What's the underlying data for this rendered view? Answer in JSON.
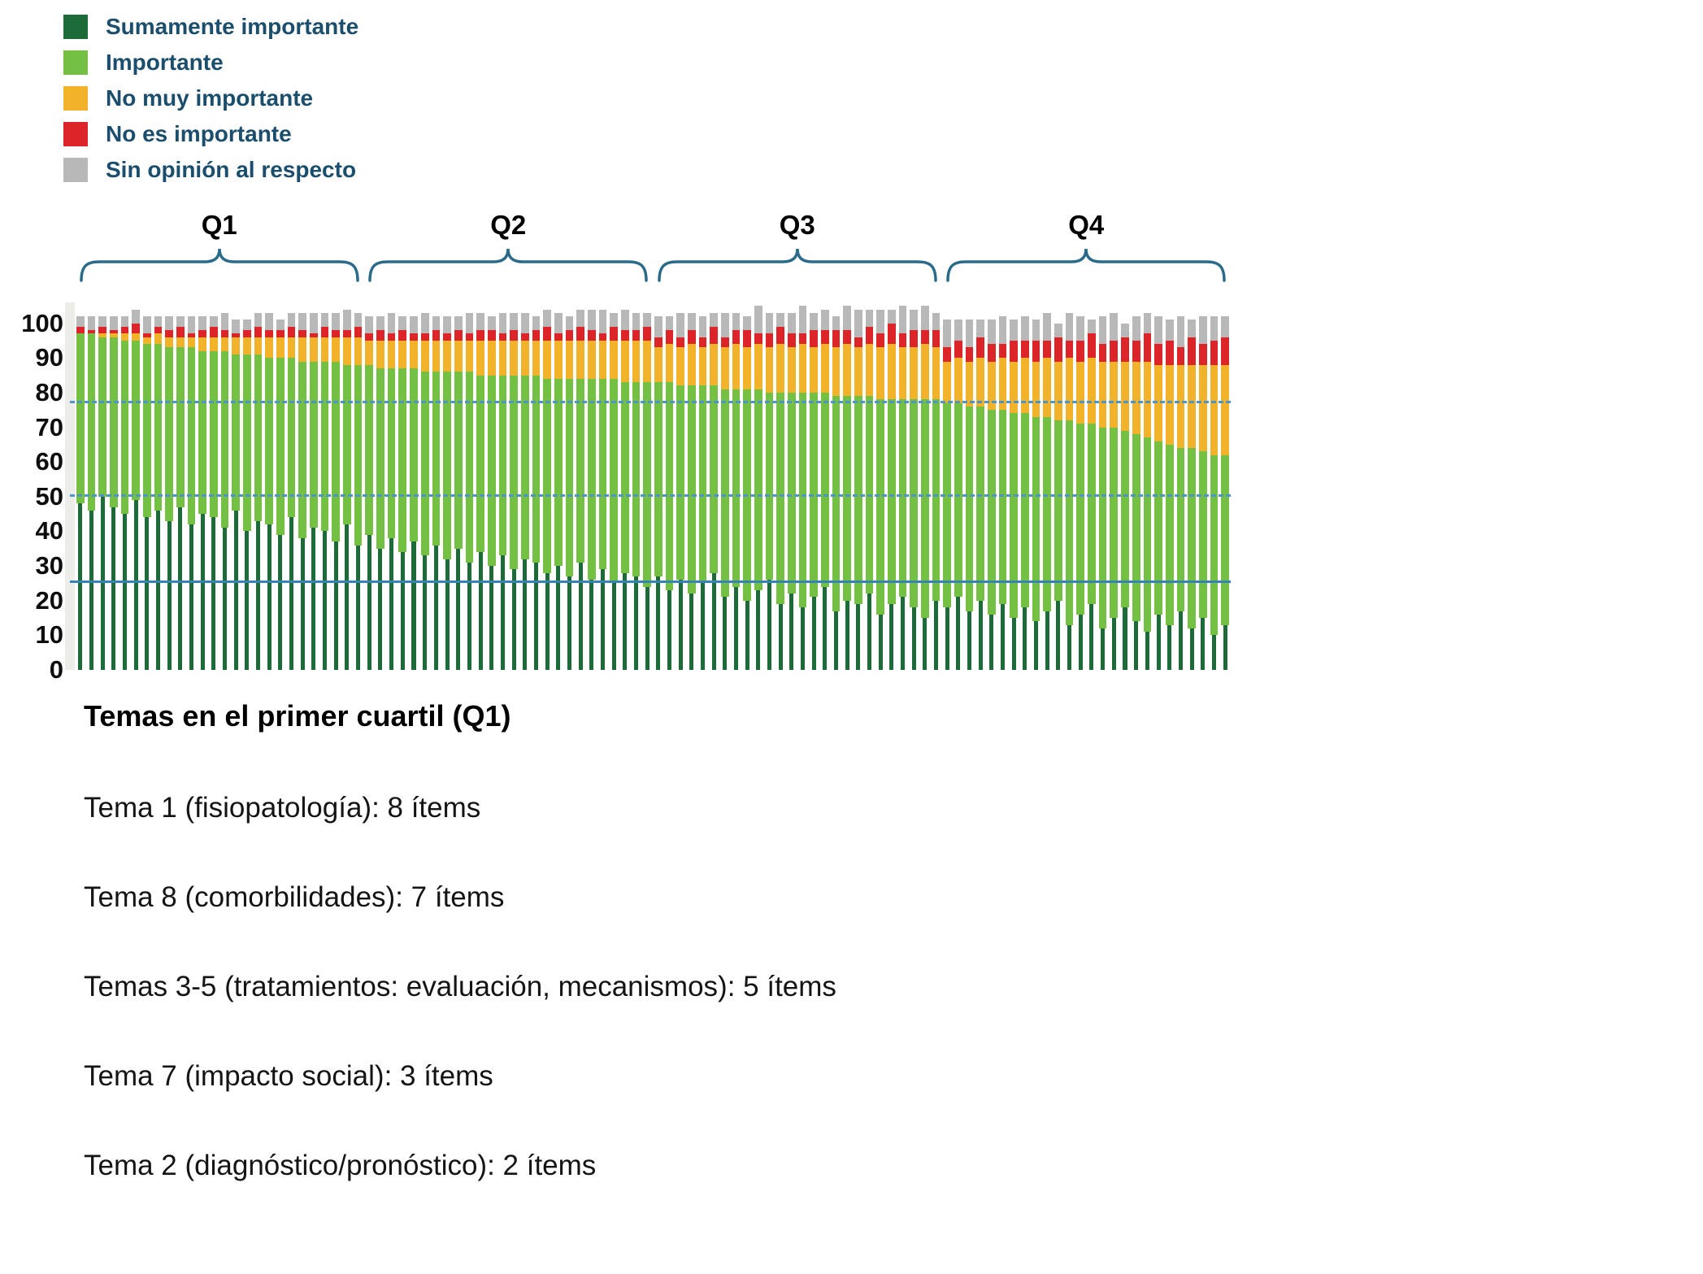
{
  "legend": {
    "items": [
      {
        "label": "Sumamente importante",
        "color": "#1d6b39"
      },
      {
        "label": "Importante",
        "color": "#74c043"
      },
      {
        "label": "No muy importante",
        "color": "#f2b32a"
      },
      {
        "label": "No es importante",
        "color": "#dd2428"
      },
      {
        "label": "Sin opinión al respecto",
        "color": "#b8b8b8"
      }
    ]
  },
  "colors": {
    "bracket": "#2a6b8a",
    "dashed_line": "#4f94c9",
    "solid_line": "#3584b5"
  },
  "y_axis": {
    "ticks": [
      100,
      90,
      80,
      70,
      60,
      50,
      40,
      30,
      20,
      10,
      0
    ]
  },
  "reference_lines": [
    {
      "value": 77,
      "style": "dashed",
      "color": "#4f94c9"
    },
    {
      "value": 50,
      "style": "dashed",
      "color": "#4f94c9"
    },
    {
      "value": 25,
      "style": "solid",
      "color": "#3584b5"
    }
  ],
  "footer": {
    "title": "Temas en el primer cuartil (Q1)",
    "lines": [
      "Tema 1 (fisiopatología): 8 ítems",
      "Tema 8 (comorbilidades): 7 ítems",
      "Temas 3-5 (tratamientos: evaluación, mecanismos): 5 ítems",
      "Tema 7 (impacto social): 3 ítems",
      "Tema 2 (diagnóstico/pronóstico): 2 ítems"
    ]
  },
  "chart_data": {
    "type": "bar",
    "stacked": true,
    "unit": "% of responses per item",
    "n_items": 104,
    "ylim": [
      0,
      100
    ],
    "grid": false,
    "legend_position": "top-left",
    "quartile_brackets": [
      {
        "label": "Q1",
        "from": 0,
        "to": 25
      },
      {
        "label": "Q2",
        "from": 26,
        "to": 51
      },
      {
        "label": "Q3",
        "from": 52,
        "to": 77
      },
      {
        "label": "Q4",
        "from": 78,
        "to": 103
      }
    ],
    "series": [
      {
        "name": "Sumamente importante",
        "color": "#1d6b39",
        "values": [
          48,
          46,
          50,
          47,
          45,
          49,
          44,
          46,
          43,
          47,
          42,
          45,
          44,
          41,
          46,
          40,
          43,
          42,
          39,
          44,
          38,
          41,
          40,
          37,
          42,
          36,
          39,
          35,
          38,
          34,
          37,
          33,
          36,
          32,
          35,
          31,
          34,
          30,
          33,
          29,
          32,
          31,
          28,
          30,
          27,
          31,
          26,
          29,
          25,
          28,
          27,
          24,
          27,
          23,
          26,
          22,
          25,
          28,
          21,
          24,
          20,
          23,
          26,
          19,
          22,
          18,
          21,
          24,
          17,
          20,
          19,
          22,
          16,
          19,
          21,
          18,
          15,
          20,
          18,
          21,
          17,
          20,
          16,
          19,
          15,
          18,
          14,
          17,
          20,
          13,
          16,
          19,
          12,
          15,
          18,
          14,
          11,
          16,
          13,
          17,
          12,
          15,
          10,
          13
        ]
      },
      {
        "name": "Importante",
        "color": "#74c043",
        "values": [
          49,
          51,
          46,
          49,
          50,
          46,
          50,
          48,
          50,
          46,
          51,
          47,
          48,
          51,
          45,
          51,
          48,
          48,
          51,
          46,
          51,
          48,
          49,
          52,
          46,
          52,
          49,
          52,
          49,
          53,
          50,
          53,
          50,
          54,
          51,
          55,
          51,
          55,
          52,
          56,
          53,
          54,
          56,
          54,
          57,
          53,
          58,
          55,
          59,
          55,
          56,
          59,
          56,
          60,
          56,
          60,
          57,
          54,
          60,
          57,
          61,
          58,
          54,
          61,
          58,
          62,
          59,
          56,
          62,
          59,
          60,
          57,
          62,
          59,
          57,
          60,
          63,
          58,
          59,
          56,
          59,
          56,
          59,
          56,
          59,
          56,
          59,
          56,
          52,
          59,
          55,
          52,
          58,
          55,
          51,
          54,
          56,
          50,
          52,
          47,
          52,
          48,
          52,
          49
        ]
      },
      {
        "name": "No muy importante",
        "color": "#f2b32a",
        "values": [
          0,
          0,
          1,
          1,
          2,
          2,
          2,
          3,
          3,
          3,
          3,
          4,
          4,
          4,
          5,
          5,
          5,
          6,
          6,
          6,
          7,
          7,
          7,
          7,
          8,
          8,
          7,
          8,
          8,
          8,
          8,
          9,
          9,
          9,
          9,
          9,
          10,
          10,
          10,
          10,
          10,
          10,
          11,
          11,
          11,
          11,
          11,
          11,
          11,
          12,
          12,
          12,
          10,
          11,
          11,
          12,
          11,
          12,
          12,
          13,
          12,
          13,
          13,
          14,
          13,
          14,
          13,
          14,
          14,
          15,
          14,
          15,
          15,
          16,
          15,
          15,
          16,
          15,
          12,
          13,
          13,
          14,
          14,
          15,
          15,
          16,
          16,
          17,
          17,
          18,
          18,
          19,
          19,
          19,
          20,
          21,
          22,
          22,
          23,
          24,
          24,
          25,
          26,
          26
        ]
      },
      {
        "name": "No es importante",
        "color": "#dd2428",
        "values": [
          2,
          1,
          2,
          1,
          2,
          3,
          1,
          2,
          2,
          3,
          1,
          2,
          3,
          2,
          1,
          2,
          3,
          2,
          2,
          3,
          2,
          1,
          3,
          2,
          2,
          3,
          2,
          3,
          2,
          3,
          2,
          2,
          3,
          2,
          3,
          2,
          3,
          3,
          2,
          3,
          2,
          3,
          4,
          2,
          3,
          4,
          3,
          2,
          4,
          3,
          3,
          4,
          3,
          4,
          3,
          4,
          3,
          5,
          3,
          4,
          5,
          3,
          4,
          5,
          4,
          3,
          5,
          4,
          5,
          4,
          3,
          5,
          4,
          6,
          4,
          5,
          4,
          5,
          4,
          5,
          4,
          6,
          5,
          4,
          6,
          5,
          6,
          5,
          7,
          5,
          6,
          7,
          5,
          6,
          7,
          6,
          8,
          6,
          7,
          5,
          8,
          6,
          7,
          8
        ]
      },
      {
        "name": "Sin opinión al respecto",
        "color": "#b8b8b8",
        "values": [
          3,
          4,
          3,
          4,
          3,
          4,
          5,
          3,
          4,
          3,
          5,
          4,
          3,
          5,
          4,
          3,
          4,
          5,
          3,
          4,
          5,
          6,
          4,
          5,
          6,
          4,
          5,
          4,
          6,
          4,
          5,
          6,
          4,
          5,
          4,
          6,
          5,
          4,
          6,
          5,
          6,
          4,
          5,
          6,
          4,
          5,
          6,
          7,
          4,
          6,
          5,
          4,
          6,
          4,
          7,
          5,
          6,
          4,
          7,
          5,
          4,
          8,
          6,
          4,
          6,
          8,
          5,
          6,
          4,
          7,
          8,
          5,
          7,
          4,
          8,
          6,
          7,
          5,
          8,
          6,
          8,
          5,
          7,
          8,
          6,
          7,
          6,
          8,
          4,
          8,
          7,
          4,
          8,
          8,
          4,
          7,
          6,
          8,
          6,
          9,
          5,
          8,
          7,
          6
        ]
      }
    ]
  }
}
